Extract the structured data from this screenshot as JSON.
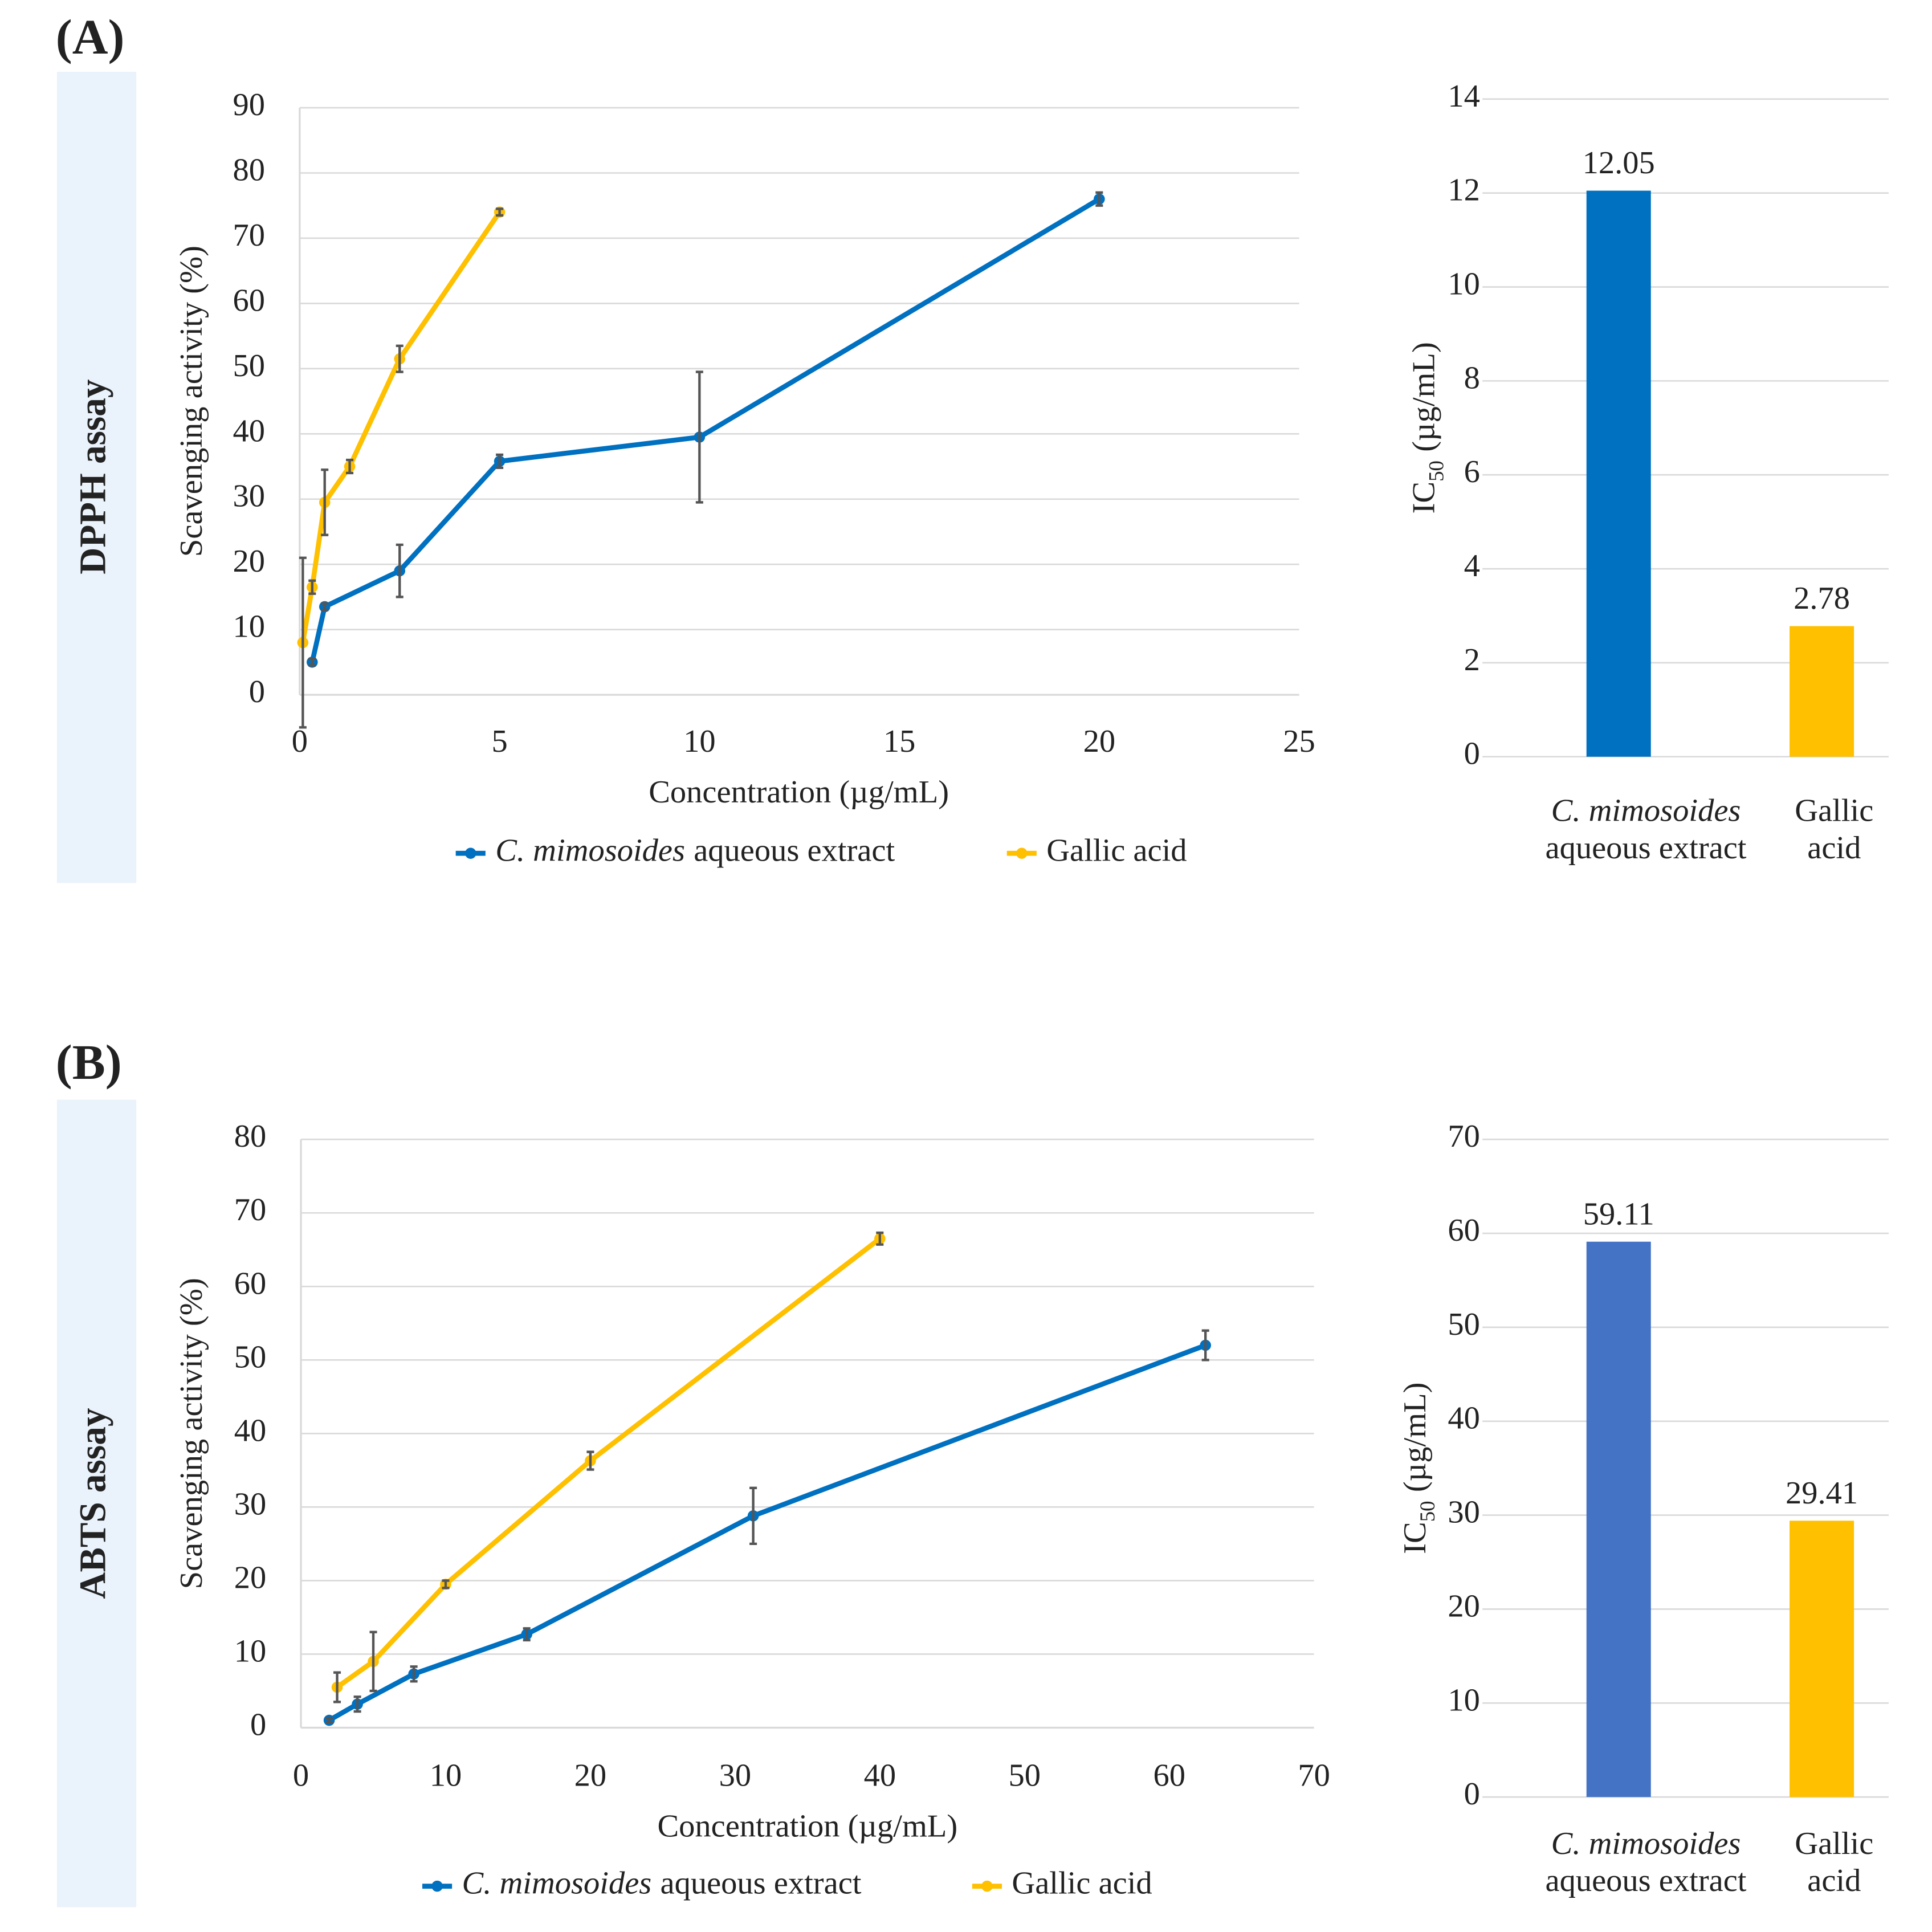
{
  "panels": [
    {
      "label": "(A)",
      "assay": "DPPH assay"
    },
    {
      "label": "(B)",
      "assay": "ABTS assay"
    }
  ],
  "chart_data": [
    {
      "type": "line",
      "xlabel": "Concentration (µg/mL)",
      "ylabel": "Scavenging activity (%)",
      "xlim": [
        0,
        25
      ],
      "xticks": [
        0,
        5,
        10,
        15,
        20,
        25
      ],
      "ylim": [
        0,
        90
      ],
      "yticks": [
        0,
        10,
        20,
        30,
        40,
        50,
        60,
        70,
        80,
        90
      ],
      "grid": true,
      "legend": "bottom",
      "series": [
        {
          "name": [
            {
              "text": "C. mimosoides",
              "italic": true
            },
            {
              "text": "aqueous extract"
            }
          ],
          "color": "#0070C0",
          "x": [
            0.3125,
            0.625,
            2.5,
            5,
            10,
            20
          ],
          "values": [
            5,
            13.5,
            19,
            35.8,
            39.5,
            76
          ],
          "errors": [
            0.5,
            0.5,
            4,
            1,
            10,
            1
          ]
        },
        {
          "name": [
            {
              "text": "Gallic acid"
            }
          ],
          "color": "#FFC000",
          "x": [
            0.078,
            0.3125,
            0.625,
            1.25,
            2.5,
            5
          ],
          "values": [
            8,
            16.5,
            29.5,
            35,
            51.5,
            74
          ],
          "errors": [
            13,
            1,
            5,
            1,
            2,
            0.5
          ]
        }
      ]
    },
    {
      "type": "bar",
      "ylabel": [
        {
          "text": "IC"
        },
        {
          "text": "50",
          "sub": true
        },
        {
          "text": "(µg/mL)"
        }
      ],
      "categories": [
        [
          {
            "text": "C. mimosoides",
            "italic": true
          },
          {
            "text": "aqueous extract"
          }
        ],
        [
          {
            "text": "Gallic"
          },
          {
            "text": "acid"
          }
        ]
      ],
      "values": [
        12.05,
        2.78
      ],
      "colors": [
        "#0070C0",
        "#FFC000"
      ],
      "ylim": [
        0,
        14
      ],
      "yticks": [
        0,
        2,
        4,
        6,
        8,
        10,
        12,
        14
      ],
      "grid": true
    },
    {
      "type": "line",
      "xlabel": "Concentration (µg/mL)",
      "ylabel": "Scavenging activity (%)",
      "xlim": [
        0,
        70
      ],
      "xticks": [
        0,
        10,
        20,
        30,
        40,
        50,
        60,
        70
      ],
      "ylim": [
        0,
        80
      ],
      "yticks": [
        0,
        10,
        20,
        30,
        40,
        50,
        60,
        70,
        80
      ],
      "grid": true,
      "legend": "bottom",
      "series": [
        {
          "name": [
            {
              "text": "C. mimosoides",
              "italic": true
            },
            {
              "text": "aqueous extract"
            }
          ],
          "color": "#0070C0",
          "x": [
            1.95,
            3.9,
            7.8,
            15.6,
            31.25,
            62.5
          ],
          "values": [
            1,
            3.2,
            7.3,
            12.7,
            28.8,
            52
          ],
          "errors": [
            0.3,
            1,
            1,
            0.8,
            3.8,
            2
          ]
        },
        {
          "name": [
            {
              "text": "Gallic acid"
            }
          ],
          "color": "#FFC000",
          "x": [
            2.5,
            5,
            10,
            20,
            40
          ],
          "values": [
            5.5,
            9,
            19.5,
            36.3,
            66.5
          ],
          "errors": [
            2,
            4,
            0.5,
            1.2,
            0.8
          ]
        }
      ]
    },
    {
      "type": "bar",
      "ylabel": [
        {
          "text": "IC"
        },
        {
          "text": "50",
          "sub": true
        },
        {
          "text": "(µg/mL)"
        }
      ],
      "categories": [
        [
          {
            "text": "C. mimosoides",
            "italic": true
          },
          {
            "text": "aqueous extract"
          }
        ],
        [
          {
            "text": "Gallic"
          },
          {
            "text": "acid"
          }
        ]
      ],
      "values": [
        59.11,
        29.41
      ],
      "colors": [
        "#4472C4",
        "#FFC000"
      ],
      "ylim": [
        0,
        70
      ],
      "yticks": [
        0,
        10,
        20,
        30,
        40,
        50,
        60,
        70
      ],
      "grid": true
    }
  ]
}
